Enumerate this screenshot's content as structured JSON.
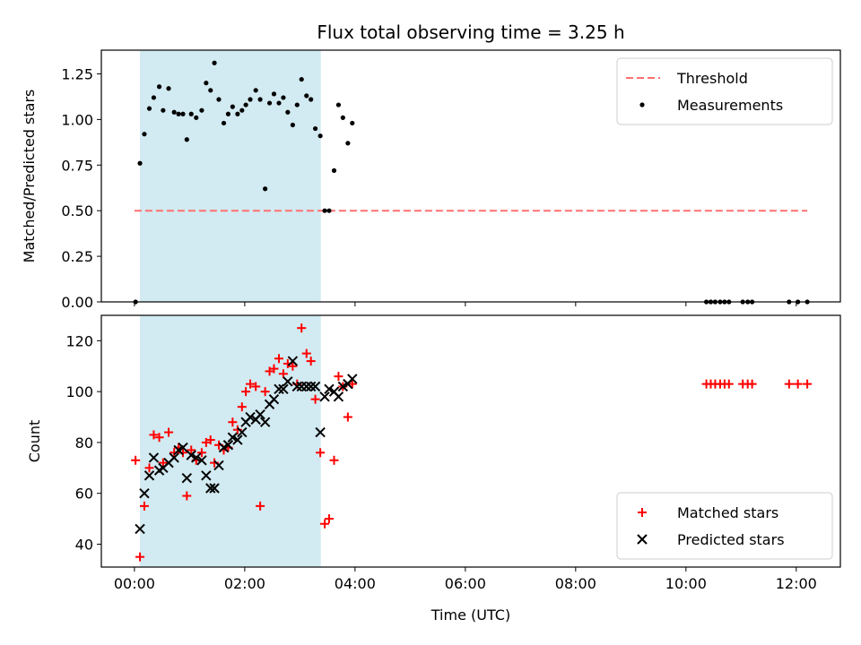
{
  "chart_data": [
    {
      "type": "scatter",
      "title": "Flux total observing time = 3.25 h",
      "xlabel": "",
      "ylabel": "Matched/Predicted stars",
      "ylim": [
        0,
        1.38
      ],
      "yticks": [
        0.0,
        0.25,
        0.5,
        0.75,
        1.0,
        1.25
      ],
      "ytick_labels": [
        "0.00",
        "0.25",
        "0.50",
        "0.75",
        "1.00",
        "1.25"
      ],
      "xlim_hours": [
        -0.6,
        12.8
      ],
      "shaded_span_hours": [
        0.1,
        3.38
      ],
      "shaded_color": "#add8e6",
      "legend_position": "top-right",
      "threshold": {
        "name": "Threshold",
        "value": 0.5,
        "x_range_hours": [
          0.0,
          12.2
        ],
        "color": "#ff7070"
      },
      "series": [
        {
          "name": "Measurements",
          "color": "#000000",
          "marker": "dot",
          "x_hours": [
            0.02,
            0.1,
            0.18,
            0.27,
            0.35,
            0.45,
            0.52,
            0.62,
            0.72,
            0.8,
            0.88,
            0.95,
            1.03,
            1.12,
            1.22,
            1.3,
            1.38,
            1.45,
            1.53,
            1.62,
            1.7,
            1.78,
            1.87,
            1.95,
            2.02,
            2.1,
            2.2,
            2.28,
            2.37,
            2.45,
            2.53,
            2.62,
            2.7,
            2.78,
            2.87,
            2.95,
            3.03,
            3.12,
            3.2,
            3.28,
            3.37,
            3.45,
            3.53,
            3.62,
            3.7,
            3.78,
            3.87,
            3.95,
            10.37,
            10.45,
            10.53,
            10.62,
            10.7,
            10.78,
            11.03,
            11.12,
            11.2,
            11.87,
            12.03,
            12.2
          ],
          "y": [
            0.0,
            0.76,
            0.92,
            1.06,
            1.12,
            1.18,
            1.05,
            1.17,
            1.04,
            1.03,
            1.03,
            0.89,
            1.03,
            1.01,
            1.05,
            1.2,
            1.16,
            1.31,
            1.11,
            0.98,
            1.03,
            1.07,
            1.03,
            1.05,
            1.08,
            1.11,
            1.16,
            1.11,
            0.62,
            1.09,
            1.14,
            1.09,
            1.12,
            1.04,
            0.97,
            1.08,
            1.22,
            1.13,
            1.11,
            0.95,
            0.91,
            0.5,
            0.5,
            0.72,
            1.08,
            1.01,
            0.87,
            0.98,
            0.0,
            0.0,
            0.0,
            0.0,
            0.0,
            0.0,
            0.0,
            0.0,
            0.0,
            0.0,
            0.0,
            0.0
          ]
        }
      ]
    },
    {
      "type": "scatter",
      "title": "",
      "xlabel": "Time (UTC)",
      "ylabel": "Count",
      "ylim": [
        31,
        130
      ],
      "yticks": [
        40,
        60,
        80,
        100,
        120
      ],
      "ytick_labels": [
        "40",
        "60",
        "80",
        "100",
        "120"
      ],
      "xlim_hours": [
        -0.6,
        12.8
      ],
      "xticks_hours": [
        0,
        2,
        4,
        6,
        8,
        10,
        12
      ],
      "xtick_labels": [
        "00:00",
        "02:00",
        "04:00",
        "06:00",
        "08:00",
        "10:00",
        "12:00"
      ],
      "shaded_span_hours": [
        0.1,
        3.38
      ],
      "shaded_color": "#add8e6",
      "legend_position": "bottom-right",
      "series": [
        {
          "name": "Matched stars",
          "color": "#ff0000",
          "marker": "plus",
          "x_hours": [
            0.02,
            0.1,
            0.18,
            0.27,
            0.35,
            0.45,
            0.52,
            0.62,
            0.72,
            0.8,
            0.88,
            0.95,
            1.03,
            1.12,
            1.22,
            1.3,
            1.38,
            1.45,
            1.53,
            1.62,
            1.7,
            1.78,
            1.87,
            1.95,
            2.02,
            2.1,
            2.2,
            2.28,
            2.37,
            2.45,
            2.53,
            2.62,
            2.7,
            2.78,
            2.87,
            2.95,
            3.03,
            3.12,
            3.2,
            3.28,
            3.37,
            3.45,
            3.53,
            3.62,
            3.7,
            3.78,
            3.87,
            3.95,
            10.37,
            10.45,
            10.53,
            10.62,
            10.7,
            10.78,
            11.03,
            11.12,
            11.2,
            11.87,
            12.03,
            12.2
          ],
          "y": [
            73,
            35,
            55,
            70,
            83,
            82,
            72,
            84,
            76,
            78,
            76,
            59,
            77,
            73,
            76,
            80,
            81,
            72,
            79,
            77,
            78,
            88,
            85,
            94,
            100,
            103,
            102,
            55,
            100,
            108,
            109,
            113,
            107,
            111,
            110,
            103,
            125,
            115,
            112,
            97,
            76,
            48,
            50,
            73,
            106,
            102,
            90,
            103,
            103,
            103,
            103,
            103,
            103,
            103,
            103,
            103,
            103,
            103,
            103,
            103
          ]
        },
        {
          "name": "Predicted stars",
          "color": "#000000",
          "marker": "x",
          "x_hours": [
            0.1,
            0.18,
            0.27,
            0.35,
            0.45,
            0.52,
            0.62,
            0.72,
            0.8,
            0.88,
            0.95,
            1.03,
            1.12,
            1.22,
            1.3,
            1.38,
            1.45,
            1.53,
            1.62,
            1.7,
            1.78,
            1.87,
            1.95,
            2.02,
            2.1,
            2.2,
            2.28,
            2.37,
            2.45,
            2.53,
            2.62,
            2.7,
            2.78,
            2.87,
            2.95,
            3.03,
            3.12,
            3.2,
            3.28,
            3.37,
            3.45,
            3.53,
            3.62,
            3.7,
            3.78,
            3.87,
            3.95
          ],
          "y": [
            46,
            60,
            67,
            74,
            69,
            70,
            72,
            74,
            77,
            78,
            66,
            75,
            74,
            73,
            67,
            62,
            62,
            71,
            78,
            79,
            82,
            81,
            84,
            88,
            90,
            89,
            91,
            88,
            95,
            97,
            101,
            101,
            104,
            112,
            102,
            102,
            102,
            102,
            102,
            84,
            98,
            101,
            100,
            98,
            102,
            103,
            105
          ]
        }
      ]
    }
  ]
}
